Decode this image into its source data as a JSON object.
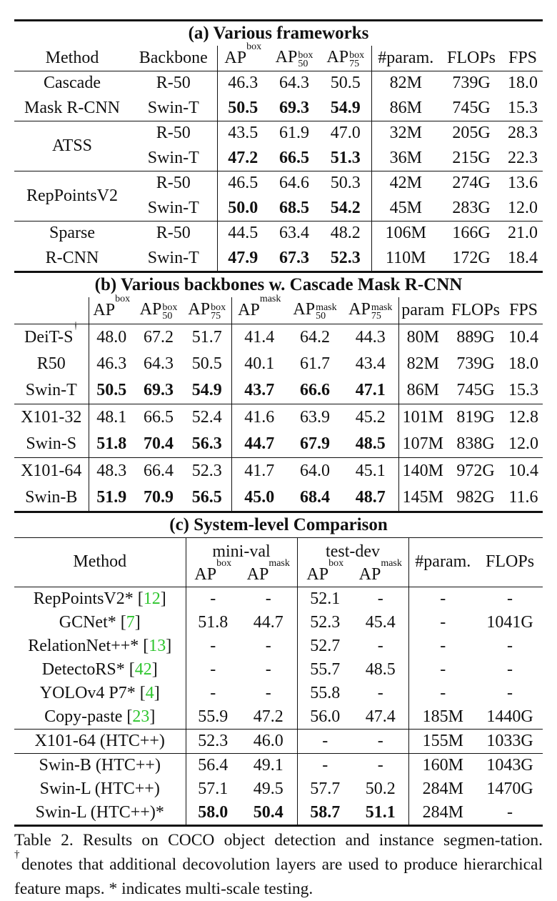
{
  "table_a": {
    "title": "(a) Various frameworks",
    "headers": {
      "method": "Method",
      "backbone": "Backbone",
      "ap": "AP",
      "ap_sup": "box",
      "ap50": "AP",
      "ap50_sup": "box",
      "ap50_sub": "50",
      "ap75": "AP",
      "ap75_sup": "box",
      "ap75_sub": "75",
      "param": "#param.",
      "flops": "FLOPs",
      "fps": "FPS"
    },
    "groups": [
      {
        "method_lines": [
          "Cascade",
          "Mask R-CNN"
        ],
        "rows": [
          {
            "backbone": "R-50",
            "ap": "46.3",
            "ap50": "64.3",
            "ap75": "50.5",
            "param": "82M",
            "flops": "739G",
            "fps": "18.0"
          },
          {
            "backbone": "Swin-T",
            "ap": "50.5",
            "ap50": "69.3",
            "ap75": "54.9",
            "param": "86M",
            "flops": "745G",
            "fps": "15.3"
          }
        ]
      },
      {
        "method_lines": [
          "ATSS"
        ],
        "rows": [
          {
            "backbone": "R-50",
            "ap": "43.5",
            "ap50": "61.9",
            "ap75": "47.0",
            "param": "32M",
            "flops": "205G",
            "fps": "28.3"
          },
          {
            "backbone": "Swin-T",
            "ap": "47.2",
            "ap50": "66.5",
            "ap75": "51.3",
            "param": "36M",
            "flops": "215G",
            "fps": "22.3"
          }
        ]
      },
      {
        "method_lines": [
          "RepPointsV2"
        ],
        "rows": [
          {
            "backbone": "R-50",
            "ap": "46.5",
            "ap50": "64.6",
            "ap75": "50.3",
            "param": "42M",
            "flops": "274G",
            "fps": "13.6"
          },
          {
            "backbone": "Swin-T",
            "ap": "50.0",
            "ap50": "68.5",
            "ap75": "54.2",
            "param": "45M",
            "flops": "283G",
            "fps": "12.0"
          }
        ]
      },
      {
        "method_lines": [
          "Sparse",
          "R-CNN"
        ],
        "rows": [
          {
            "backbone": "R-50",
            "ap": "44.5",
            "ap50": "63.4",
            "ap75": "48.2",
            "param": "106M",
            "flops": "166G",
            "fps": "21.0"
          },
          {
            "backbone": "Swin-T",
            "ap": "47.9",
            "ap50": "67.3",
            "ap75": "52.3",
            "param": "110M",
            "flops": "172G",
            "fps": "18.4"
          }
        ]
      }
    ]
  },
  "table_b": {
    "title": "(b) Various backbones w. Cascade Mask R-CNN",
    "headers": {
      "ap": "AP",
      "box": "box",
      "mask": "mask",
      "sub50": "50",
      "sub75": "75",
      "param": "param",
      "flops": "FLOPs",
      "fps": "FPS"
    },
    "rows": [
      {
        "name": "DeiT-S",
        "dagger": "†",
        "bold": false,
        "v": [
          "48.0",
          "67.2",
          "51.7",
          "41.4",
          "64.2",
          "44.3",
          "80M",
          "889G",
          "10.4"
        ]
      },
      {
        "name": "R50",
        "dagger": "",
        "bold": false,
        "v": [
          "46.3",
          "64.3",
          "50.5",
          "40.1",
          "61.7",
          "43.4",
          "82M",
          "739G",
          "18.0"
        ]
      },
      {
        "name": "Swin-T",
        "dagger": "",
        "bold": true,
        "v": [
          "50.5",
          "69.3",
          "54.9",
          "43.7",
          "66.6",
          "47.1",
          "86M",
          "745G",
          "15.3"
        ]
      },
      {
        "name": "X101-32",
        "dagger": "",
        "bold": false,
        "v": [
          "48.1",
          "66.5",
          "52.4",
          "41.6",
          "63.9",
          "45.2",
          "101M",
          "819G",
          "12.8"
        ]
      },
      {
        "name": "Swin-S",
        "dagger": "",
        "bold": true,
        "v": [
          "51.8",
          "70.4",
          "56.3",
          "44.7",
          "67.9",
          "48.5",
          "107M",
          "838G",
          "12.0"
        ]
      },
      {
        "name": "X101-64",
        "dagger": "",
        "bold": false,
        "v": [
          "48.3",
          "66.4",
          "52.3",
          "41.7",
          "64.0",
          "45.1",
          "140M",
          "972G",
          "10.4"
        ]
      },
      {
        "name": "Swin-B",
        "dagger": "",
        "bold": true,
        "v": [
          "51.9",
          "70.9",
          "56.5",
          "45.0",
          "68.4",
          "48.7",
          "145M",
          "982G",
          "11.6"
        ]
      }
    ]
  },
  "table_c": {
    "title": "(c) System-level Comparison",
    "headers": {
      "method": "Method",
      "minival": "mini-val",
      "testdev": "test-dev",
      "ap": "AP",
      "box": "box",
      "mask": "mask",
      "param": "#param.",
      "flops": "FLOPs"
    },
    "rows": [
      {
        "name": "RepPointsV2* [",
        "ref": "12",
        "close": "]",
        "v": [
          "-",
          "-",
          "52.1",
          "-",
          "-",
          "-"
        ]
      },
      {
        "name": "GCNet* [",
        "ref": "7",
        "close": "]",
        "v": [
          "51.8",
          "44.7",
          "52.3",
          "45.4",
          "-",
          "1041G"
        ]
      },
      {
        "name": "RelationNet++* [",
        "ref": "13",
        "close": "]",
        "v": [
          "-",
          "-",
          "52.7",
          "-",
          "-",
          "-"
        ]
      },
      {
        "name": "DetectoRS* [",
        "ref": "42",
        "close": "]",
        "v": [
          "-",
          "-",
          "55.7",
          "48.5",
          "-",
          "-"
        ]
      },
      {
        "name": "YOLOv4 P7* [",
        "ref": "4",
        "close": "]",
        "v": [
          "-",
          "-",
          "55.8",
          "-",
          "-",
          "-"
        ]
      },
      {
        "name": "Copy-paste [",
        "ref": "23",
        "close": "]",
        "v": [
          "55.9",
          "47.2",
          "56.0",
          "47.4",
          "185M",
          "1440G"
        ]
      },
      {
        "name": "X101-64 (HTC++)",
        "ref": "",
        "close": "",
        "v": [
          "52.3",
          "46.0",
          "-",
          "-",
          "155M",
          "1033G"
        ]
      },
      {
        "name": "Swin-B (HTC++)",
        "ref": "",
        "close": "",
        "v": [
          "56.4",
          "49.1",
          "-",
          "-",
          "160M",
          "1043G"
        ]
      },
      {
        "name": "Swin-L (HTC++)",
        "ref": "",
        "close": "",
        "v": [
          "57.1",
          "49.5",
          "57.7",
          "50.2",
          "284M",
          "1470G"
        ]
      },
      {
        "name": "Swin-L (HTC++)*",
        "ref": "",
        "close": "",
        "bold": true,
        "v": [
          "58.0",
          "50.4",
          "58.7",
          "51.1",
          "284M",
          "-"
        ]
      }
    ]
  },
  "caption": {
    "part1": "Table 2. Results on COCO object detection and instance segmen-tation. ",
    "dagger": "†",
    "part2": "denotes that additional decovolution layers are used to produce hierarchical feature maps. * indicates multi-scale testing."
  }
}
